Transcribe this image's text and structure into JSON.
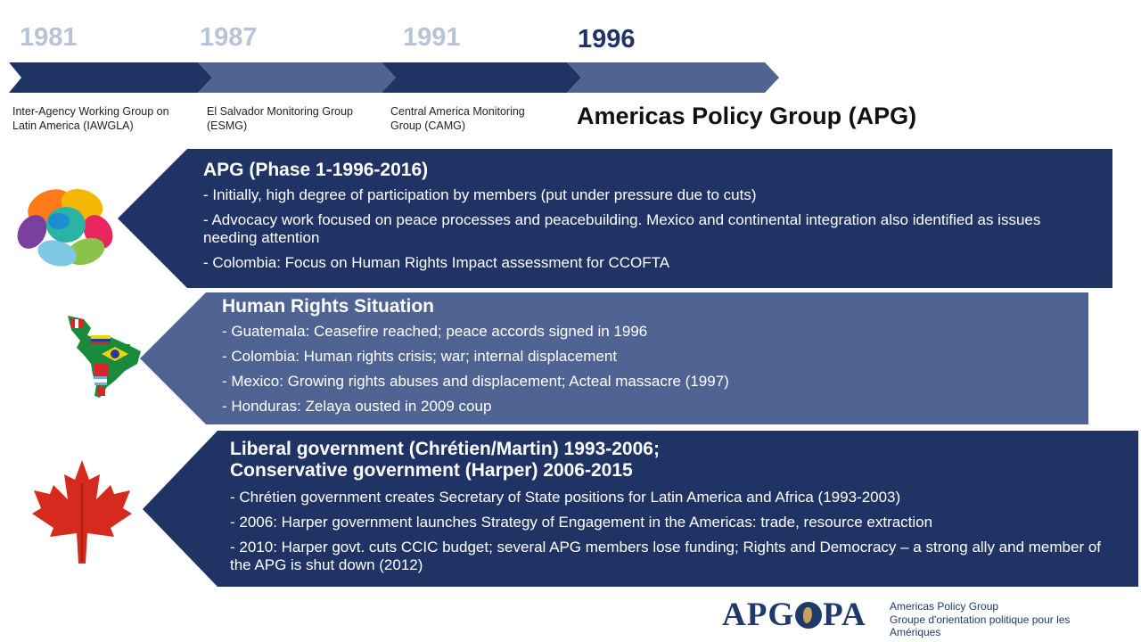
{
  "timeline": {
    "years": [
      "1981",
      "1987",
      "1991",
      "1996"
    ],
    "labels": [
      "Inter-Agency Working Group on Latin America (IAWGLA)",
      "El Salvador Monitoring Group (ESMG)",
      "Central America Monitoring Group (CAMG)"
    ],
    "current_label": "Americas Policy Group (APG)"
  },
  "panels": [
    {
      "title": "APG (Phase 1-1996-2016)",
      "items": [
        "- Initially, high degree of participation by members (put under pressure due to cuts)",
        "- Advocacy work focused on peace processes and peacebuilding. Mexico and continental integration also identified as issues needing attention",
        "- Colombia: Focus on Human Rights Impact assessment for CCOFTA"
      ]
    },
    {
      "title": "Human Rights Situation",
      "items": [
        "- Guatemala: Ceasefire reached; peace accords signed in 1996",
        "- Colombia: Human rights crisis; war; internal displacement",
        "- Mexico: Growing rights abuses and displacement; Acteal massacre (1997)",
        "- Honduras: Zelaya ousted in 2009 coup"
      ]
    },
    {
      "title_line1": "Liberal government (Chrétien/Martin) 1993-2006;",
      "title_line2": "Conservative government (Harper) 2006-2015",
      "items": [
        "- Chrétien government creates Secretary of State positions for Latin America and Africa (1993-2003)",
        "- 2006: Harper government launches Strategy of Engagement in the Americas: trade, resource extraction",
        "- 2010: Harper govt. cuts CCIC budget; several APG members lose funding; Rights and Democracy – a strong ally and member of the APG is shut down (2012)"
      ]
    }
  ],
  "logo": {
    "mark_left": "APG",
    "mark_right": "PA",
    "line1": "Americas Policy Group",
    "line2": "Groupe d'orientation politique pour les Amériques"
  },
  "colors": {
    "dark_navy": "#1f3464",
    "mid_blue": "#4f6493",
    "muted_year": "#b9c3d8",
    "maple_red": "#d62a1e"
  },
  "icons": [
    "hands-icon",
    "latin-america-flags-map-icon",
    "maple-leaf-icon"
  ]
}
